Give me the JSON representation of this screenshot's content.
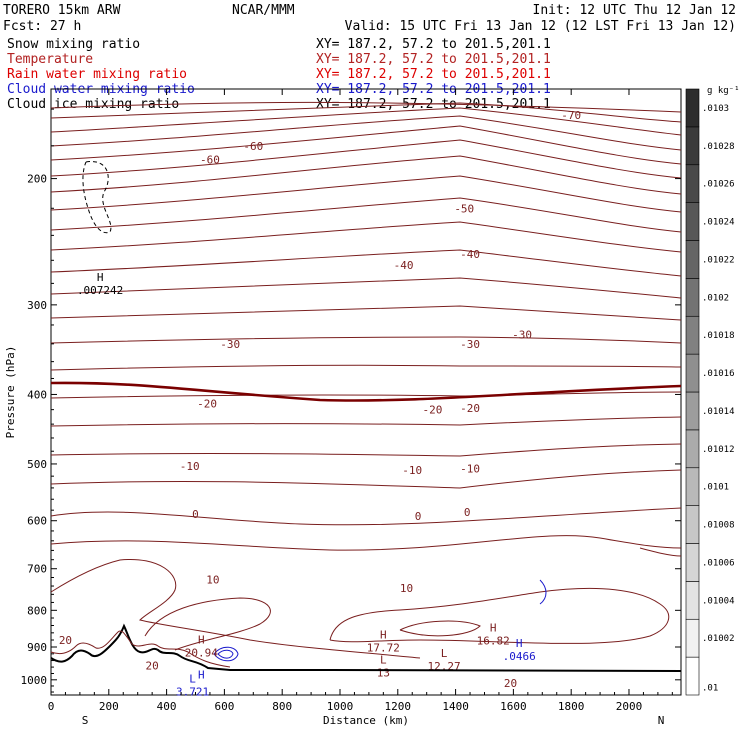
{
  "header": {
    "model": "TORERO   15km ARW",
    "center": "NCAR/MMM",
    "init": "Init: 12 UTC Thu 12 Jan 12",
    "fcst": "Fcst:   27 h",
    "valid": "Valid: 15 UTC Fri 13 Jan 12 (12 LST Fri 13 Jan 12)"
  },
  "legend": [
    {
      "field": "Snow mixing ratio",
      "xy": "XY= 187.2, 57.2 to 201.5,201.1",
      "color": "#000000"
    },
    {
      "field": "Temperature",
      "xy": "XY= 187.2, 57.2 to 201.5,201.1",
      "color": "#b22222"
    },
    {
      "field": "Rain water mixing ratio",
      "xy": "XY= 187.2, 57.2 to 201.5,201.1",
      "color": "#dd0000"
    },
    {
      "field": "Cloud water mixing ratio",
      "xy": "XY= 187.2, 57.2 to 201.5,201.1",
      "color": "#1a1acc"
    },
    {
      "field": "Cloud ice mixing ratio",
      "xy": "XY= 187.2, 57.2 to 201.5,201.1",
      "color": "#000000"
    }
  ],
  "chart_data": {
    "type": "line",
    "xlabel": "Distance (km)",
    "ylabel": "Pressure (hPa)",
    "xlim": [
      0,
      2180
    ],
    "ylim": [
      1050,
      150
    ],
    "y_scale": "log",
    "x_ticks": [
      0,
      200,
      400,
      600,
      800,
      1000,
      1200,
      1400,
      1600,
      1800,
      2000
    ],
    "y_ticks": [
      200,
      300,
      400,
      500,
      600,
      700,
      800,
      900,
      1000
    ],
    "left_end": "S",
    "right_end": "N",
    "colorbar": {
      "unit": "g kg⁻¹",
      "labels": [
        ".01",
        ".01002",
        ".01004",
        ".01006",
        ".01008",
        ".0101",
        ".01012",
        ".01014",
        ".01016",
        ".01018",
        ".0102",
        ".01022",
        ".01024",
        ".01026",
        ".01028",
        ".0103"
      ]
    },
    "temperature_contours": [
      {
        "value": -70,
        "labels": [
          {
            "x": 1800,
            "p": 163
          }
        ]
      },
      {
        "value": -60,
        "labels": [
          {
            "x": 550,
            "p": 188
          },
          {
            "x": 700,
            "p": 180
          }
        ]
      },
      {
        "value": -50,
        "labels": [
          {
            "x": 1430,
            "p": 220
          }
        ]
      },
      {
        "value": -40,
        "labels": [
          {
            "x": 1220,
            "p": 264
          },
          {
            "x": 1450,
            "p": 255
          }
        ]
      },
      {
        "value": -30,
        "labels": [
          {
            "x": 620,
            "p": 340
          },
          {
            "x": 1450,
            "p": 340
          },
          {
            "x": 1630,
            "p": 330
          }
        ]
      },
      {
        "value": -20,
        "labels": [
          {
            "x": 540,
            "p": 412
          },
          {
            "x": 1320,
            "p": 420
          },
          {
            "x": 1450,
            "p": 418
          }
        ]
      },
      {
        "value": -10,
        "labels": [
          {
            "x": 480,
            "p": 503
          },
          {
            "x": 1250,
            "p": 510
          },
          {
            "x": 1450,
            "p": 507
          }
        ]
      },
      {
        "value": 0,
        "labels": [
          {
            "x": 500,
            "p": 587
          },
          {
            "x": 1270,
            "p": 591
          },
          {
            "x": 1440,
            "p": 583
          }
        ]
      },
      {
        "value": 10,
        "labels": [
          {
            "x": 560,
            "p": 725
          },
          {
            "x": 1230,
            "p": 745
          }
        ]
      },
      {
        "value": 20,
        "labels": [
          {
            "x": 50,
            "p": 880
          },
          {
            "x": 350,
            "p": 955
          },
          {
            "x": 1590,
            "p": 1010
          }
        ]
      }
    ],
    "extrema": [
      {
        "kind": "H",
        "value": "20.94",
        "x": 520,
        "p": 890
      },
      {
        "kind": "H",
        "value": "17.72",
        "x": 1150,
        "p": 876
      },
      {
        "kind": "H",
        "value": "16.82",
        "x": 1530,
        "p": 856
      },
      {
        "kind": "L",
        "value": "13",
        "x": 1150,
        "p": 949
      },
      {
        "kind": "L",
        "value": "12.27",
        "x": 1360,
        "p": 930
      },
      {
        "kind": "L",
        "value": "3.721",
        "x": 490,
        "p": 1008
      },
      {
        "kind": "H",
        "value": "",
        "x": 520,
        "p": 996
      },
      {
        "kind": "H",
        "value": ".007242",
        "x": 170,
        "p": 278
      },
      {
        "kind": "H",
        "value": ".0466",
        "x": 1620,
        "p": 900
      }
    ],
    "grid": false,
    "legend_position": "top-left"
  }
}
